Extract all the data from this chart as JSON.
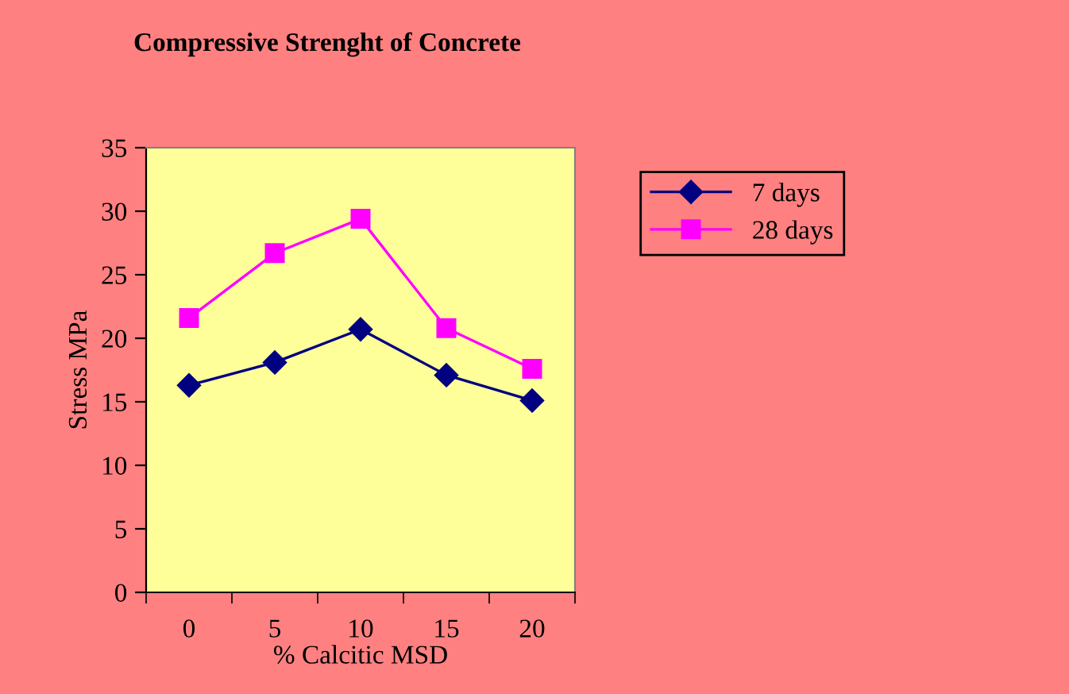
{
  "chart_data": {
    "type": "line",
    "title": "Compressive Strenght of Concrete",
    "xlabel": "% Calcitic MSD",
    "ylabel": "Stress MPa",
    "categories": [
      "0",
      "5",
      "10",
      "15",
      "20"
    ],
    "series": [
      {
        "name": "7 days",
        "color": "#000080",
        "marker": "diamond",
        "values": [
          16.3,
          18.1,
          20.7,
          17.1,
          15.1
        ]
      },
      {
        "name": "28 days",
        "color": "#ff00ff",
        "marker": "square",
        "values": [
          21.6,
          26.7,
          29.4,
          20.8,
          17.6
        ]
      }
    ],
    "ylim": [
      0,
      35
    ],
    "yticks": [
      0,
      5,
      10,
      15,
      20,
      25,
      30,
      35
    ],
    "grid": false,
    "legend": "right"
  }
}
